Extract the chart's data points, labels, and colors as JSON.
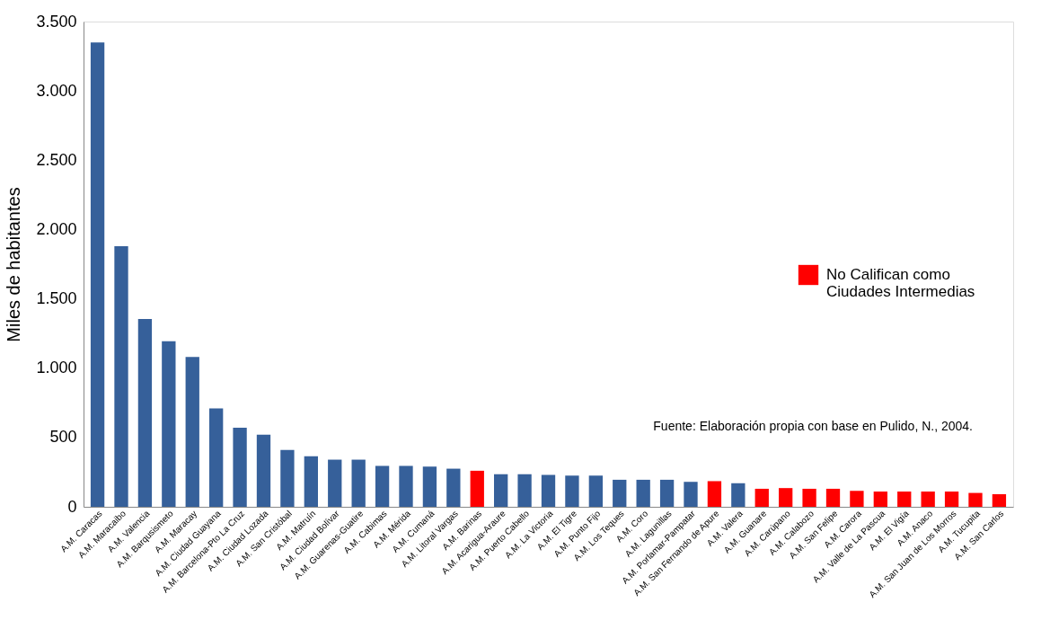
{
  "chart_data": {
    "type": "bar",
    "ylabel": "Miles de habitantes",
    "categories": [
      "A.M. Caracas",
      "A.M. Maracaibo",
      "A.M. Valencia",
      "A.M. Barqusismeto",
      "A.M. Maracay",
      "A.M. Ciudad Guayana",
      "A.M. Barcelona-Pto La Cruz",
      "A.M. Ciudad Lozada",
      "A.M. San Cristóbal",
      "A.M. Matruín",
      "A.M. Ciudad Bolívar",
      "A.M. Guarenas-Guatire",
      "A.M. Cabimas",
      "A.M. Mérida",
      "A.M. Cumaná",
      "A.M. Litoral Vargas",
      "A.M. Barinas",
      "A.M. Acarigua-Araure",
      "A.M. Puerto Cabello",
      "A.M. La Victoria",
      "A.M. El Tigre",
      "A.M. Punto Fijo",
      "A.M. Los Teques",
      "A.M. Coro",
      "A.M. Lagunillas",
      "A.M. Porlamar-Pampatar",
      "A.M. San Fernando de Apure",
      "A.M. Valera",
      "A.M. Guanare",
      "A.M. Carúpano",
      "A.M. Calabozo",
      "A.M. San Felipe",
      "A.M. Carora",
      "A.M. Valle de La Pascua",
      "A.M. El Vigía",
      "A.M. Anaco",
      "A.M. San Juan de Los Morros",
      "A.M. Tucupita",
      "A.M. San Carlos"
    ],
    "series": [
      {
        "color": "#36609a",
        "values": [
          3350,
          1880,
          1355,
          1195,
          1080,
          710,
          570,
          520,
          410,
          365,
          340,
          340,
          295,
          295,
          290,
          275,
          null,
          235,
          235,
          230,
          225,
          225,
          195,
          195,
          195,
          180,
          null,
          170,
          null,
          null,
          null,
          null,
          null,
          null,
          null,
          null,
          null,
          null,
          null
        ]
      },
      {
        "name": "No Califican como Ciudades Intermedias",
        "color": "#ff0000",
        "values": [
          null,
          null,
          null,
          null,
          null,
          null,
          null,
          null,
          null,
          null,
          null,
          null,
          null,
          null,
          null,
          null,
          260,
          null,
          null,
          null,
          null,
          null,
          null,
          null,
          null,
          null,
          185,
          null,
          130,
          135,
          130,
          130,
          115,
          110,
          110,
          110,
          110,
          100,
          90
        ]
      }
    ],
    "ylim": [
      0,
      3500
    ],
    "yticks": [
      0,
      {
        "value": 500,
        "label": "500"
      },
      {
        "value": 1000,
        "label": "1.000"
      },
      {
        "value": 1500,
        "label": "1.500"
      },
      {
        "value": 2000,
        "label": "2.000"
      },
      {
        "value": 2500,
        "label": "2.500"
      },
      {
        "value": 3000,
        "label": "3.000"
      },
      {
        "value": 3500,
        "label": "3.500"
      }
    ],
    "legend": "right",
    "grid": false,
    "annotations": [
      "Fuente: Elaboración propia con base en Pulido, N., 2004."
    ]
  }
}
